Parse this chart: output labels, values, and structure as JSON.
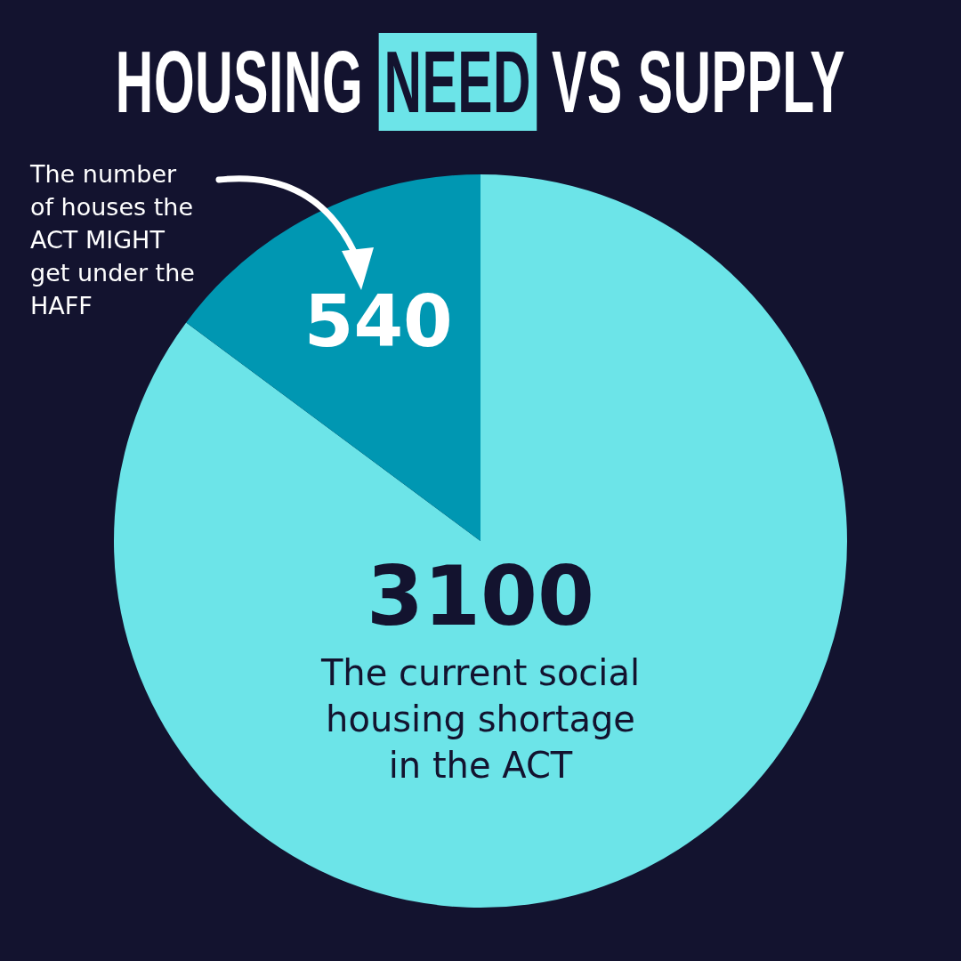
{
  "chart_data": {
    "type": "pie",
    "title": "HOUSING NEED VS SUPPLY",
    "categories": [
      "The current social housing shortage in the ACT",
      "The number of houses the ACT MIGHT get under the HAFF"
    ],
    "values": [
      3100,
      540
    ],
    "colors": [
      "#6ce4e8",
      "#0097b2"
    ],
    "data_labels": true,
    "legend": false
  }
}
